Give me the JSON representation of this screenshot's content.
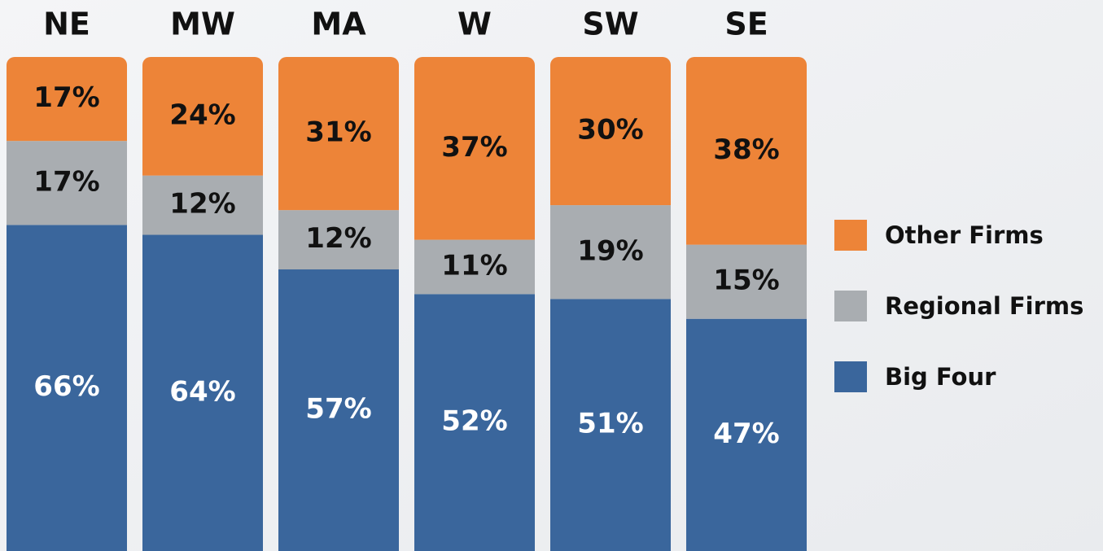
{
  "chart_data": {
    "type": "stacked_bar",
    "categories": [
      "NE",
      "MW",
      "MA",
      "W",
      "SW",
      "SE"
    ],
    "series": [
      {
        "name": "Big Four",
        "color": "#3a669c",
        "label_color": "#ffffff",
        "values": [
          66,
          64,
          57,
          52,
          51,
          47
        ],
        "value_labels": [
          "66%",
          "64%",
          "57%",
          "52%",
          "51%",
          "47%"
        ]
      },
      {
        "name": "Regional Firms",
        "color": "#a9adb1",
        "label_color": "#111111",
        "values": [
          17,
          12,
          12,
          11,
          19,
          15
        ],
        "value_labels": [
          "17%",
          "12%",
          "12%",
          "11%",
          "19%",
          "15%"
        ]
      },
      {
        "name": "Other Firms",
        "color": "#ed8438",
        "label_color": "#111111",
        "values": [
          17,
          24,
          31,
          37,
          30,
          38
        ],
        "value_labels": [
          "17%",
          "24%",
          "31%",
          "37%",
          "30%",
          "38%"
        ]
      }
    ],
    "legend": "right"
  }
}
